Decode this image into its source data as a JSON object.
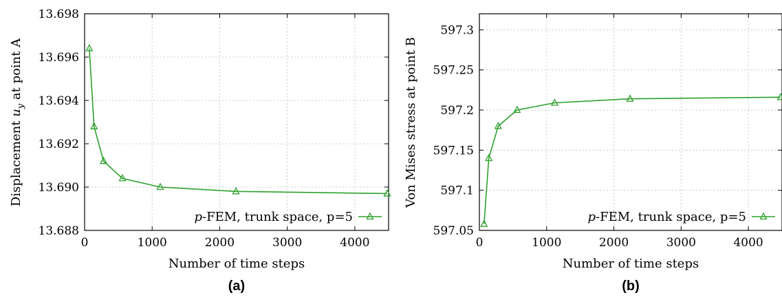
{
  "series_color": "#2ca02c",
  "marker_icon": "triangle-marker-icon",
  "chart_data": [
    {
      "type": "line",
      "caption": "(a)",
      "xlabel": "Number of time steps",
      "ylabel_prefix": "Displacement ",
      "ylabel_var": "u",
      "ylabel_sub": "y",
      "ylabel_suffix": " at point A",
      "xlim": [
        0,
        4500
      ],
      "ylim": [
        13.688,
        13.698
      ],
      "xticks": [
        0,
        1000,
        2000,
        3000,
        4000
      ],
      "xtick_labels": [
        "0",
        "1000",
        "2000",
        "3000",
        "4000"
      ],
      "yticks": [
        13.688,
        13.69,
        13.692,
        13.694,
        13.696,
        13.698
      ],
      "ytick_labels": [
        "13.688",
        "13.690",
        "13.692",
        "13.694",
        "13.696",
        "13.698"
      ],
      "grid": true,
      "legend_position": "bottom-right",
      "series": [
        {
          "name_italic": "p",
          "name_rest": "-FEM, trunk space, p=5",
          "x": [
            70,
            140,
            280,
            560,
            1120,
            2240,
            4480
          ],
          "y": [
            13.6964,
            13.6928,
            13.6912,
            13.6904,
            13.69,
            13.6898,
            13.6897
          ]
        }
      ]
    },
    {
      "type": "line",
      "caption": "(b)",
      "xlabel": "Number of time steps",
      "ylabel_prefix": "Von Mises stress at point B",
      "ylabel_var": "",
      "ylabel_sub": "",
      "ylabel_suffix": "",
      "xlim": [
        0,
        4500
      ],
      "ylim": [
        597.05,
        597.32
      ],
      "xticks": [
        0,
        1000,
        2000,
        3000,
        4000
      ],
      "xtick_labels": [
        "0",
        "1000",
        "2000",
        "3000",
        "4000"
      ],
      "yticks": [
        597.05,
        597.1,
        597.15,
        597.2,
        597.25,
        597.3
      ],
      "ytick_labels": [
        "597.05",
        "597.1",
        "597.15",
        "597.2",
        "597.25",
        "597.3"
      ],
      "grid": true,
      "legend_position": "bottom-right",
      "series": [
        {
          "name_italic": "p",
          "name_rest": "-FEM, trunk space, p=5",
          "x": [
            70,
            140,
            280,
            560,
            1120,
            2240,
            4480
          ],
          "y": [
            597.058,
            597.14,
            597.18,
            597.2,
            597.209,
            597.214,
            597.216
          ]
        }
      ]
    }
  ]
}
